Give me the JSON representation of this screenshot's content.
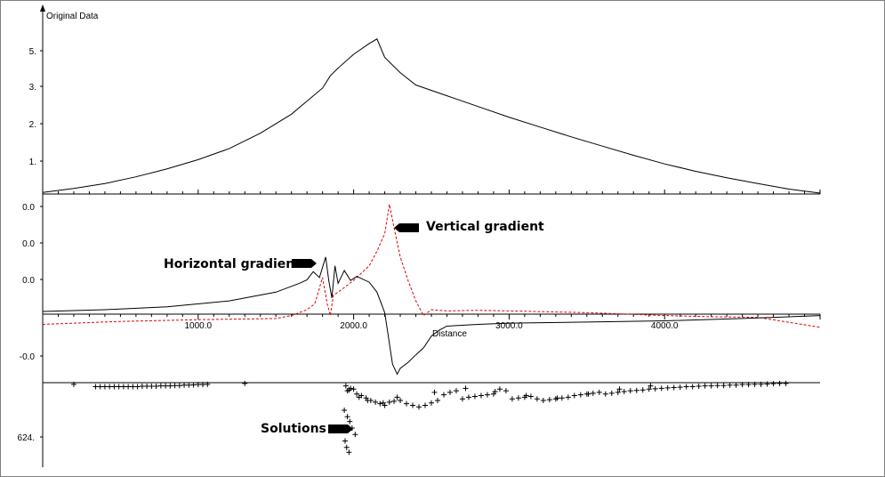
{
  "chart_data": [
    {
      "type": "line",
      "panel": "original-data",
      "title": "",
      "ylabel": "Original Data",
      "ytick_labels": [
        "5.",
        "3.",
        "2.",
        "1."
      ],
      "ylim": [
        0,
        6
      ],
      "xlim": [
        0,
        5000
      ],
      "series": [
        {
          "x": [
            0,
            200,
            400,
            600,
            800,
            1000,
            1200,
            1400,
            1600,
            1800,
            1850,
            1900,
            2000,
            2100,
            2150,
            2200,
            2300,
            2400,
            2600,
            2800,
            3000,
            3200,
            3400,
            3600,
            3800,
            4000,
            4200,
            4400,
            4600,
            4800,
            5000
          ],
          "values": [
            0.05,
            0.18,
            0.34,
            0.56,
            0.82,
            1.12,
            1.48,
            1.98,
            2.6,
            3.45,
            3.85,
            4.1,
            4.55,
            4.9,
            5.05,
            4.45,
            3.95,
            3.55,
            3.2,
            2.85,
            2.5,
            2.18,
            1.86,
            1.56,
            1.26,
            0.98,
            0.74,
            0.53,
            0.34,
            0.16,
            0.03
          ]
        }
      ]
    },
    {
      "type": "line",
      "panel": "gradients",
      "xlabel": "Distance",
      "xtick_labels": [
        "1000.0",
        "2000.0",
        "3000.0",
        "4000.0"
      ],
      "xticks": [
        1000,
        2000,
        3000,
        4000
      ],
      "ytick_labels": [
        "0.0",
        "0.0",
        "0.0",
        "-0.0"
      ],
      "xlim": [
        0,
        5000
      ],
      "ylim": [
        -1.15,
        1.95
      ],
      "colors": {
        "horizontal": "#000000",
        "vertical": "#dd0000"
      },
      "series": [
        {
          "name": "Horizontal gradient",
          "x": [
            0,
            400,
            800,
            1200,
            1500,
            1650,
            1700,
            1740,
            1780,
            1820,
            1840,
            1860,
            1880,
            1900,
            1940,
            1980,
            2020,
            2100,
            2150,
            2200,
            2220,
            2250,
            2280,
            2300,
            2350,
            2400,
            2450,
            2500,
            2550,
            2600,
            2800,
            3000,
            3500,
            4000,
            4500,
            5000
          ],
          "values": [
            0.02,
            0.05,
            0.1,
            0.2,
            0.35,
            0.5,
            0.56,
            0.7,
            0.6,
            0.95,
            0.55,
            0.25,
            0.8,
            0.5,
            0.72,
            0.55,
            0.62,
            0.52,
            0.35,
            0.0,
            -0.35,
            -0.88,
            -1.05,
            -0.95,
            -0.85,
            -0.72,
            -0.6,
            -0.4,
            -0.3,
            -0.23,
            -0.2,
            -0.18,
            -0.16,
            -0.14,
            -0.1,
            -0.05
          ]
        },
        {
          "name": "Vertical gradient",
          "x": [
            0,
            500,
            1000,
            1500,
            1600,
            1700,
            1750,
            1800,
            1830,
            1850,
            1870,
            1900,
            2000,
            2100,
            2150,
            2200,
            2230,
            2260,
            2300,
            2350,
            2400,
            2450,
            2500,
            2600,
            2800,
            3000,
            3500,
            4000,
            4300,
            4600,
            5000
          ],
          "values": [
            -0.2,
            -0.15,
            -0.12,
            -0.1,
            -0.05,
            0.05,
            0.15,
            0.6,
            0.15,
            -0.05,
            0.3,
            0.35,
            0.55,
            0.8,
            1.05,
            1.35,
            1.85,
            1.45,
            0.95,
            0.55,
            0.2,
            -0.05,
            0.05,
            0.03,
            0.04,
            0.03,
            0.0,
            -0.05,
            -0.07,
            -0.08,
            -0.25
          ]
        }
      ]
    },
    {
      "type": "scatter",
      "panel": "solutions",
      "ytick_labels": [
        "624."
      ],
      "xlim": [
        0,
        5000
      ],
      "ylim": [
        -500,
        0
      ],
      "series": [
        {
          "name": "Solutions",
          "x": [
            200,
            340,
            370,
            400,
            430,
            460,
            490,
            520,
            550,
            580,
            610,
            640,
            670,
            700,
            730,
            760,
            790,
            820,
            850,
            880,
            910,
            940,
            970,
            1000,
            1030,
            1060,
            1300,
            1950,
            1960,
            1970,
            1980,
            2000,
            2020,
            2050,
            2080,
            2110,
            2140,
            2170,
            2200,
            2230,
            2260,
            2300,
            2340,
            2380,
            2420,
            2460,
            2500,
            2540,
            2580,
            2620,
            2660,
            2700,
            2740,
            2780,
            2820,
            2860,
            2900,
            2940,
            2980,
            3020,
            3060,
            3100,
            3140,
            3180,
            3220,
            3260,
            3300,
            3340,
            3380,
            3420,
            3460,
            3500,
            3540,
            3580,
            3620,
            3660,
            3700,
            3740,
            3780,
            3820,
            3860,
            3900,
            3940,
            3980,
            4020,
            4060,
            4100,
            4140,
            4180,
            4220,
            4260,
            4300,
            4340,
            4380,
            4420,
            4460,
            4500,
            4540,
            4580,
            4620,
            4660,
            4700,
            4740,
            4780,
            1940,
            1960,
            1975,
            1990,
            2010,
            1945,
            1955,
            1970,
            2035,
            2090,
            2190,
            2280,
            2520,
            2720,
            2910,
            3110,
            3310,
            3510,
            3710,
            3910
          ],
          "values": [
            -10,
            -25,
            -25,
            -25,
            -25,
            -25,
            -25,
            -25,
            -25,
            -25,
            -25,
            -22,
            -22,
            -22,
            -22,
            -20,
            -20,
            -20,
            -18,
            -18,
            -15,
            -15,
            -14,
            -12,
            -12,
            -10,
            -5,
            -20,
            -50,
            -45,
            -35,
            -40,
            -70,
            -80,
            -95,
            -110,
            -120,
            -130,
            -140,
            -120,
            -115,
            -110,
            -130,
            -140,
            -150,
            -140,
            -125,
            -110,
            -75,
            -60,
            -50,
            -100,
            -90,
            -85,
            -80,
            -75,
            -70,
            -40,
            -50,
            -100,
            -95,
            -90,
            -85,
            -100,
            -110,
            -105,
            -100,
            -95,
            -90,
            -80,
            -75,
            -70,
            -65,
            -60,
            -70,
            -65,
            -60,
            -55,
            -50,
            -48,
            -45,
            -40,
            -38,
            -35,
            -32,
            -30,
            -28,
            -25,
            -25,
            -22,
            -20,
            -20,
            -18,
            -18,
            -15,
            -15,
            -12,
            -12,
            -10,
            -10,
            -8,
            -6,
            -5,
            -5,
            -170,
            -210,
            -240,
            -280,
            -320,
            -360,
            -400,
            -430,
            -90,
            -110,
            -125,
            -90,
            -60,
            -35,
            -55,
            -80,
            -95,
            -70,
            -40,
            -20
          ]
        }
      ]
    }
  ],
  "annotations": {
    "horizontal_label": "Horizontal gradient",
    "vertical_label": "Vertical gradient",
    "solutions_label": "Solutions"
  }
}
